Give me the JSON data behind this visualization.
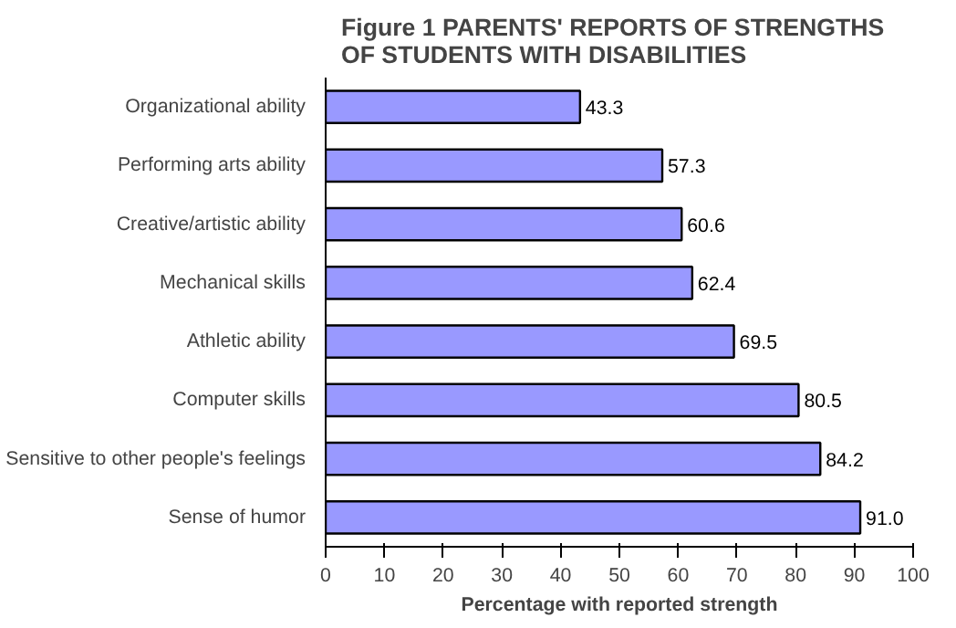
{
  "chart_data": {
    "type": "bar",
    "orientation": "horizontal",
    "title": "Figure 1   PARENTS' REPORTS OF STRENGTHS OF STUDENTS WITH DISABILITIES",
    "xlabel": "Percentage with reported strength",
    "categories": [
      "Organizational ability",
      "Performing arts ability",
      "Creative/artistic ability",
      "Mechanical skills",
      "Athletic ability",
      "Computer skills",
      "Sensitive to other people's feelings",
      "Sense of humor"
    ],
    "values": [
      43.3,
      57.3,
      60.6,
      62.4,
      69.5,
      80.5,
      84.2,
      91.0
    ],
    "color": "#9999ff",
    "xlim": [
      0,
      100
    ],
    "xticks": [
      0,
      10,
      20,
      30,
      40,
      50,
      60,
      70,
      80,
      90,
      100
    ],
    "value_labels": [
      "43.3",
      "57.3",
      "60.6",
      "62.4",
      "69.5",
      "80.5",
      "84.2",
      "91.0"
    ],
    "grid": false
  }
}
